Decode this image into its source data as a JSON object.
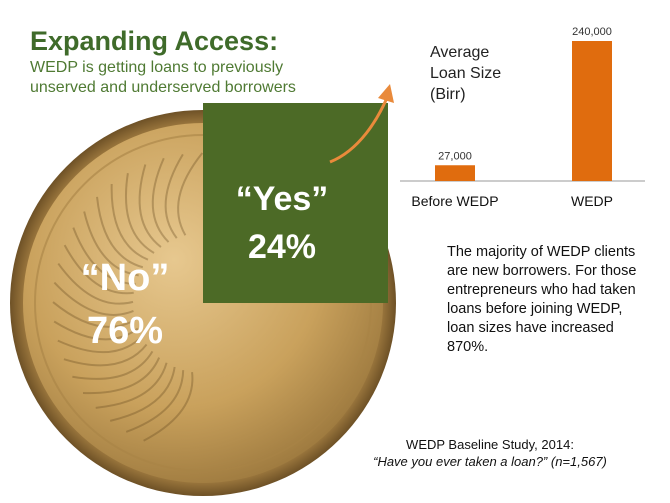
{
  "header": {
    "title": "Expanding Access:",
    "subtitle": "WEDP is getting loans to previously unserved and underserved borrowers"
  },
  "colors": {
    "accent_green": "#4c6a26",
    "title_green": "#3f6b2a",
    "bar_orange": "#e06c0e",
    "coin_gold": "#c9a15c"
  },
  "chart_data": [
    {
      "type": "pie",
      "slices": [
        {
          "label": "“Yes”",
          "value": 24,
          "display": "24%"
        },
        {
          "label": "“No”",
          "value": 76,
          "display": "76%"
        }
      ]
    },
    {
      "type": "bar",
      "title": "Average Loan Size (Birr)",
      "categories": [
        "Before WEDP",
        "WEDP"
      ],
      "values": [
        27000,
        240000
      ],
      "data_labels": [
        "27,000",
        "240,000"
      ]
    }
  ],
  "bar_title_text": "Average\nLoan Size\n(Birr)",
  "note": "The majority of WEDP clients are new borrowers. For those entrepreneurs who had taken loans before joining WEDP, loan sizes have increased 870%.",
  "source": {
    "line1": "WEDP Baseline Study, 2014:",
    "line2": "“Have you ever taken a loan?” (n=1,567)"
  }
}
